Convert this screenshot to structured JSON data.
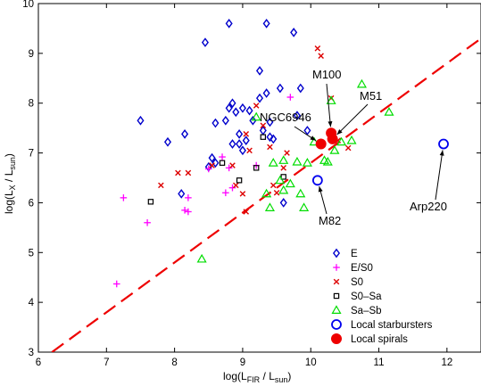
{
  "chart_data": {
    "type": "scatter",
    "x_axis": {
      "label_main": "log(L",
      "label_sub": "FIR",
      "label_mid": " / L",
      "label_sub2": "sun",
      "label_end": ")",
      "range": [
        6,
        12.5
      ],
      "ticks": [
        6,
        7,
        8,
        9,
        10,
        11,
        12
      ],
      "tick_labels": [
        "6",
        "7",
        "8",
        "9",
        "10",
        "11",
        "12"
      ]
    },
    "y_axis": {
      "label_main": "log(L",
      "label_sub": "X",
      "label_mid": " / L",
      "label_sub2": "sun",
      "label_end": ")",
      "range": [
        3,
        10
      ],
      "ticks": [
        3,
        4,
        5,
        6,
        7,
        8,
        9,
        10
      ],
      "tick_labels": [
        "3",
        "4",
        "5",
        "6",
        "7",
        "8",
        "9",
        "10"
      ]
    },
    "grid": false,
    "legend_position": "bottom-right",
    "series": [
      {
        "name": "E",
        "marker": "diamond",
        "color": "#0000cc",
        "points": [
          [
            7.5,
            7.65
          ],
          [
            7.9,
            7.22
          ],
          [
            8.15,
            7.38
          ],
          [
            8.45,
            9.22
          ],
          [
            8.5,
            6.72
          ],
          [
            8.55,
            6.9
          ],
          [
            8.6,
            6.8
          ],
          [
            8.6,
            7.6
          ],
          [
            8.75,
            7.65
          ],
          [
            8.8,
            9.6
          ],
          [
            8.8,
            7.9
          ],
          [
            8.85,
            8.0
          ],
          [
            8.85,
            7.18
          ],
          [
            8.9,
            7.82
          ],
          [
            8.95,
            7.38
          ],
          [
            9.0,
            7.05
          ],
          [
            9.0,
            7.9
          ],
          [
            9.05,
            7.25
          ],
          [
            9.1,
            7.85
          ],
          [
            9.15,
            7.65
          ],
          [
            9.25,
            8.65
          ],
          [
            9.25,
            8.1
          ],
          [
            9.35,
            9.6
          ],
          [
            9.35,
            8.2
          ],
          [
            9.4,
            7.32
          ],
          [
            9.4,
            7.62
          ],
          [
            9.45,
            7.28
          ],
          [
            9.55,
            8.3
          ],
          [
            9.6,
            6.0
          ],
          [
            9.75,
            9.42
          ],
          [
            9.8,
            7.75
          ],
          [
            9.85,
            8.3
          ],
          [
            9.95,
            7.45
          ],
          [
            9.3,
            7.45
          ],
          [
            8.1,
            6.18
          ],
          [
            8.95,
            7.18
          ]
        ]
      },
      {
        "name": "E/S0",
        "marker": "plus",
        "color": "#ff00ff",
        "points": [
          [
            7.15,
            4.37
          ],
          [
            7.25,
            6.1
          ],
          [
            7.6,
            5.6
          ],
          [
            8.15,
            5.85
          ],
          [
            8.2,
            5.82
          ],
          [
            8.2,
            6.1
          ],
          [
            8.5,
            6.68
          ],
          [
            8.7,
            6.92
          ],
          [
            8.75,
            6.2
          ],
          [
            8.8,
            6.7
          ],
          [
            8.85,
            6.3
          ],
          [
            9.2,
            6.75
          ],
          [
            9.7,
            8.12
          ]
        ]
      },
      {
        "name": "S0",
        "marker": "x",
        "color": "#dd0000",
        "points": [
          [
            7.8,
            6.35
          ],
          [
            8.05,
            6.6
          ],
          [
            8.2,
            6.6
          ],
          [
            8.55,
            6.75
          ],
          [
            8.85,
            6.75
          ],
          [
            8.9,
            6.35
          ],
          [
            9.0,
            6.18
          ],
          [
            9.05,
            7.38
          ],
          [
            9.05,
            5.82
          ],
          [
            9.1,
            7.05
          ],
          [
            9.2,
            7.95
          ],
          [
            9.3,
            7.55
          ],
          [
            9.4,
            7.12
          ],
          [
            9.45,
            6.35
          ],
          [
            9.5,
            6.2
          ],
          [
            9.6,
            6.7
          ],
          [
            9.65,
            7.0
          ],
          [
            10.1,
            9.1
          ],
          [
            10.15,
            8.95
          ],
          [
            10.3,
            8.1
          ],
          [
            10.4,
            7.25
          ],
          [
            10.55,
            7.1
          ]
        ]
      },
      {
        "name": "S0–Sa",
        "marker": "square",
        "color": "#000000",
        "points": [
          [
            7.65,
            6.02
          ],
          [
            8.7,
            6.8
          ],
          [
            8.95,
            6.45
          ],
          [
            9.2,
            6.7
          ],
          [
            9.3,
            7.32
          ],
          [
            9.6,
            6.52
          ]
        ]
      },
      {
        "name": "Sa–Sb",
        "marker": "triangle",
        "color": "#00dd00",
        "points": [
          [
            8.4,
            4.87
          ],
          [
            9.2,
            7.72
          ],
          [
            9.35,
            6.18
          ],
          [
            9.4,
            5.9
          ],
          [
            9.45,
            6.8
          ],
          [
            9.55,
            6.45
          ],
          [
            9.6,
            6.85
          ],
          [
            9.6,
            6.25
          ],
          [
            9.7,
            6.38
          ],
          [
            9.8,
            6.82
          ],
          [
            9.85,
            6.18
          ],
          [
            9.9,
            5.9
          ],
          [
            9.95,
            6.8
          ],
          [
            10.05,
            7.22
          ],
          [
            10.2,
            6.85
          ],
          [
            10.25,
            6.82
          ],
          [
            10.3,
            8.05
          ],
          [
            10.35,
            7.05
          ],
          [
            10.45,
            7.22
          ],
          [
            10.6,
            7.25
          ],
          [
            10.75,
            8.38
          ],
          [
            11.15,
            7.82
          ]
        ]
      },
      {
        "name": "Local starbursters",
        "marker": "open-circle",
        "color": "#0000ee",
        "points": [
          [
            10.1,
            6.45
          ],
          [
            11.95,
            7.18
          ]
        ]
      },
      {
        "name": "Local spirals",
        "marker": "filled-circle",
        "color": "#ee0000",
        "points": [
          [
            10.15,
            7.18
          ],
          [
            10.3,
            7.4
          ],
          [
            10.32,
            7.28
          ]
        ]
      }
    ],
    "fit_line": {
      "color": "#ee0000",
      "style": "dashed",
      "points": [
        [
          6.2,
          3.0
        ],
        [
          12.5,
          9.3
        ]
      ]
    },
    "annotations": [
      {
        "text": "M100",
        "target": [
          10.3,
          7.4
        ]
      },
      {
        "text": "M51",
        "target": [
          10.32,
          7.28
        ]
      },
      {
        "text": "NGC6946",
        "target": [
          10.15,
          7.18
        ]
      },
      {
        "text": "M82",
        "target": [
          10.1,
          6.45
        ]
      },
      {
        "text": "Arp220",
        "target": [
          11.95,
          7.18
        ]
      }
    ]
  }
}
